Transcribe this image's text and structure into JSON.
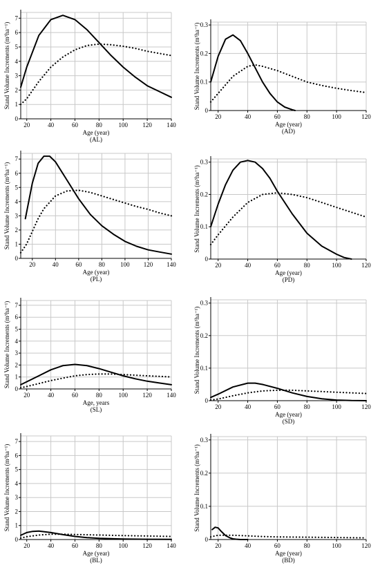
{
  "figure": {
    "panels": [
      "AL",
      "AD",
      "PL",
      "PD",
      "SL",
      "SD",
      "BL",
      "BD"
    ]
  },
  "chart_data": [
    {
      "type": "line",
      "panel_label": "(AL)",
      "xlabel": "Age (year)",
      "ylabel": "Stand Volume Increments (m³ha⁻¹)",
      "xlim": [
        15,
        140
      ],
      "ylim": [
        0,
        7.4
      ],
      "xticks": [
        "20",
        "40",
        "60",
        "80",
        "100",
        "120",
        "140"
      ],
      "yticks": [
        "0",
        "1",
        "2",
        "3",
        "4",
        "5",
        "6",
        "7"
      ],
      "grid": true,
      "series": [
        {
          "style": "solid",
          "x": [
            15,
            20,
            30,
            40,
            50,
            60,
            70,
            80,
            90,
            100,
            110,
            120,
            130,
            140
          ],
          "y": [
            2.2,
            3.6,
            5.8,
            6.9,
            7.2,
            6.9,
            6.2,
            5.3,
            4.4,
            3.6,
            2.9,
            2.3,
            1.9,
            1.5
          ]
        },
        {
          "style": "dotted",
          "x": [
            15,
            20,
            30,
            40,
            50,
            60,
            70,
            80,
            90,
            100,
            110,
            120,
            130,
            140
          ],
          "y": [
            1.0,
            1.4,
            2.6,
            3.6,
            4.3,
            4.8,
            5.1,
            5.2,
            5.15,
            5.05,
            4.9,
            4.7,
            4.55,
            4.4
          ]
        }
      ]
    },
    {
      "type": "line",
      "panel_label": "(AD)",
      "xlabel": "Age (year)",
      "ylabel": "Stand Volume Increments (m³ha⁻¹)",
      "xlim": [
        15,
        120
      ],
      "ylim": [
        0,
        0.31
      ],
      "xticks": [
        "20",
        "40",
        "60",
        "80",
        "100",
        "120"
      ],
      "yticks": [
        "0",
        "0.1",
        "0.2",
        "0.3"
      ],
      "grid": true,
      "series": [
        {
          "style": "solid",
          "x": [
            15,
            20,
            25,
            30,
            35,
            40,
            45,
            50,
            55,
            60,
            65,
            70,
            72
          ],
          "y": [
            0.1,
            0.19,
            0.25,
            0.265,
            0.245,
            0.2,
            0.15,
            0.1,
            0.06,
            0.03,
            0.012,
            0.003,
            0.0
          ]
        },
        {
          "style": "dotted",
          "x": [
            15,
            20,
            30,
            40,
            45,
            50,
            60,
            70,
            80,
            90,
            100,
            110,
            120
          ],
          "y": [
            0.03,
            0.06,
            0.12,
            0.155,
            0.16,
            0.155,
            0.14,
            0.12,
            0.1,
            0.088,
            0.078,
            0.07,
            0.063
          ]
        }
      ]
    },
    {
      "type": "line",
      "panel_label": "(PL)",
      "xlabel": "Age (year)",
      "ylabel": "Stand Volume Increments (m³ha⁻¹)",
      "xlim": [
        10,
        140
      ],
      "ylim": [
        0,
        7.4
      ],
      "xticks": [
        "20",
        "40",
        "60",
        "80",
        "100",
        "120",
        "140"
      ],
      "yticks": [
        "0",
        "1",
        "2",
        "3",
        "4",
        "5",
        "6",
        "7"
      ],
      "grid": true,
      "series": [
        {
          "style": "solid",
          "x": [
            14,
            20,
            25,
            30,
            35,
            40,
            50,
            60,
            70,
            80,
            90,
            100,
            110,
            120,
            130,
            140
          ],
          "y": [
            2.8,
            5.3,
            6.7,
            7.2,
            7.2,
            6.8,
            5.5,
            4.2,
            3.1,
            2.3,
            1.7,
            1.2,
            0.85,
            0.6,
            0.45,
            0.3
          ]
        },
        {
          "style": "dotted",
          "x": [
            10,
            15,
            20,
            25,
            30,
            40,
            50,
            60,
            70,
            80,
            90,
            100,
            110,
            120,
            130,
            140
          ],
          "y": [
            0.4,
            1.0,
            1.9,
            2.8,
            3.5,
            4.4,
            4.75,
            4.8,
            4.65,
            4.4,
            4.15,
            3.9,
            3.65,
            3.45,
            3.2,
            3.0
          ]
        }
      ]
    },
    {
      "type": "line",
      "panel_label": "(PD)",
      "xlabel": "Age (year)",
      "ylabel": "Stand Volume Increments (m³ha⁻¹)",
      "xlim": [
        15,
        120
      ],
      "ylim": [
        0,
        0.31
      ],
      "xticks": [
        "20",
        "40",
        "60",
        "80",
        "100",
        "120"
      ],
      "yticks": [
        "0",
        "0.1",
        "0.2",
        "0.3"
      ],
      "grid": true,
      "series": [
        {
          "style": "solid",
          "x": [
            15,
            20,
            25,
            30,
            35,
            40,
            45,
            50,
            55,
            60,
            70,
            80,
            90,
            100,
            105,
            110
          ],
          "y": [
            0.1,
            0.17,
            0.23,
            0.275,
            0.3,
            0.305,
            0.3,
            0.28,
            0.25,
            0.21,
            0.14,
            0.08,
            0.04,
            0.015,
            0.005,
            0.0
          ]
        },
        {
          "style": "dotted",
          "x": [
            15,
            20,
            30,
            40,
            50,
            60,
            70,
            80,
            90,
            100,
            110,
            120
          ],
          "y": [
            0.045,
            0.075,
            0.13,
            0.175,
            0.2,
            0.205,
            0.2,
            0.19,
            0.175,
            0.16,
            0.145,
            0.13
          ]
        }
      ]
    },
    {
      "type": "line",
      "panel_label": "(SL)",
      "xlabel": "Age, years",
      "ylabel": "Stand Volume Increments (m³ha⁻¹)",
      "xlim": [
        15,
        140
      ],
      "ylim": [
        0,
        7.4
      ],
      "xticks": [
        "20",
        "40",
        "60",
        "80",
        "100",
        "120",
        "140"
      ],
      "yticks": [
        "0",
        "1",
        "2",
        "3",
        "4",
        "5",
        "6",
        "7"
      ],
      "grid": true,
      "series": [
        {
          "style": "solid",
          "x": [
            15,
            20,
            30,
            40,
            50,
            60,
            70,
            80,
            90,
            100,
            110,
            120,
            130,
            140
          ],
          "y": [
            0.35,
            0.6,
            1.1,
            1.6,
            1.95,
            2.05,
            1.95,
            1.7,
            1.4,
            1.1,
            0.85,
            0.65,
            0.5,
            0.35
          ]
        },
        {
          "style": "dotted",
          "x": [
            15,
            20,
            30,
            40,
            50,
            60,
            70,
            80,
            90,
            100,
            110,
            120,
            130,
            140
          ],
          "y": [
            0.1,
            0.2,
            0.45,
            0.7,
            0.9,
            1.1,
            1.2,
            1.25,
            1.25,
            1.2,
            1.15,
            1.1,
            1.05,
            1.0
          ]
        }
      ]
    },
    {
      "type": "line",
      "panel_label": "(SD)",
      "xlabel": "Age (year)",
      "ylabel": "Stand Volume Increments (m³ha⁻¹)",
      "xlim": [
        15,
        120
      ],
      "ylim": [
        0,
        0.31
      ],
      "xticks": [
        "20",
        "40",
        "60",
        "80",
        "100",
        "120"
      ],
      "yticks": [
        "0",
        "0.1",
        "0.2",
        "0.3"
      ],
      "grid": true,
      "series": [
        {
          "style": "solid",
          "x": [
            15,
            20,
            30,
            40,
            45,
            50,
            60,
            70,
            80,
            90,
            100,
            110,
            120
          ],
          "y": [
            0.01,
            0.02,
            0.042,
            0.054,
            0.054,
            0.05,
            0.038,
            0.024,
            0.013,
            0.006,
            0.002,
            0.0005,
            0.0
          ]
        },
        {
          "style": "dotted",
          "x": [
            15,
            20,
            30,
            40,
            50,
            60,
            70,
            80,
            90,
            100,
            110,
            120
          ],
          "y": [
            0.002,
            0.005,
            0.015,
            0.024,
            0.03,
            0.032,
            0.032,
            0.03,
            0.028,
            0.026,
            0.024,
            0.022
          ]
        }
      ]
    },
    {
      "type": "line",
      "panel_label": "(BL)",
      "xlabel": "Age (year)",
      "ylabel": "Stand Volume Increments (m³ha⁻¹)",
      "xlim": [
        15,
        140
      ],
      "ylim": [
        0,
        7.4
      ],
      "xticks": [
        "20",
        "40",
        "60",
        "80",
        "100",
        "120",
        "140"
      ],
      "yticks": [
        "0",
        "1",
        "2",
        "3",
        "4",
        "5",
        "6",
        "7"
      ],
      "grid": true,
      "series": [
        {
          "style": "solid",
          "x": [
            15,
            20,
            25,
            30,
            40,
            50,
            60,
            70,
            80,
            100,
            120,
            140
          ],
          "y": [
            0.3,
            0.5,
            0.58,
            0.6,
            0.5,
            0.35,
            0.22,
            0.14,
            0.09,
            0.04,
            0.02,
            0.01
          ]
        },
        {
          "style": "dotted",
          "x": [
            15,
            20,
            30,
            40,
            50,
            60,
            80,
            100,
            120,
            140
          ],
          "y": [
            0.1,
            0.2,
            0.32,
            0.38,
            0.38,
            0.36,
            0.32,
            0.28,
            0.25,
            0.22
          ]
        }
      ]
    },
    {
      "type": "line",
      "panel_label": "(BD)",
      "xlabel": "Age (year)",
      "ylabel": "Stand Volume Increments (m³ha⁻¹)",
      "xlim": [
        15,
        120
      ],
      "ylim": [
        0,
        0.31
      ],
      "xticks": [
        "20",
        "40",
        "60",
        "80",
        "100",
        "120"
      ],
      "yticks": [
        "0",
        "0.1",
        "0.2",
        "0.3"
      ],
      "grid": true,
      "series": [
        {
          "style": "solid",
          "x": [
            16,
            18,
            20,
            22,
            25,
            28,
            30,
            32,
            35,
            40
          ],
          "y": [
            0.03,
            0.037,
            0.035,
            0.025,
            0.012,
            0.005,
            0.002,
            0.001,
            0.0,
            0.0
          ]
        },
        {
          "style": "dotted",
          "x": [
            15,
            20,
            30,
            40,
            50,
            60,
            80,
            100,
            120
          ],
          "y": [
            0.008,
            0.013,
            0.013,
            0.011,
            0.009,
            0.008,
            0.007,
            0.006,
            0.005
          ]
        }
      ]
    }
  ]
}
